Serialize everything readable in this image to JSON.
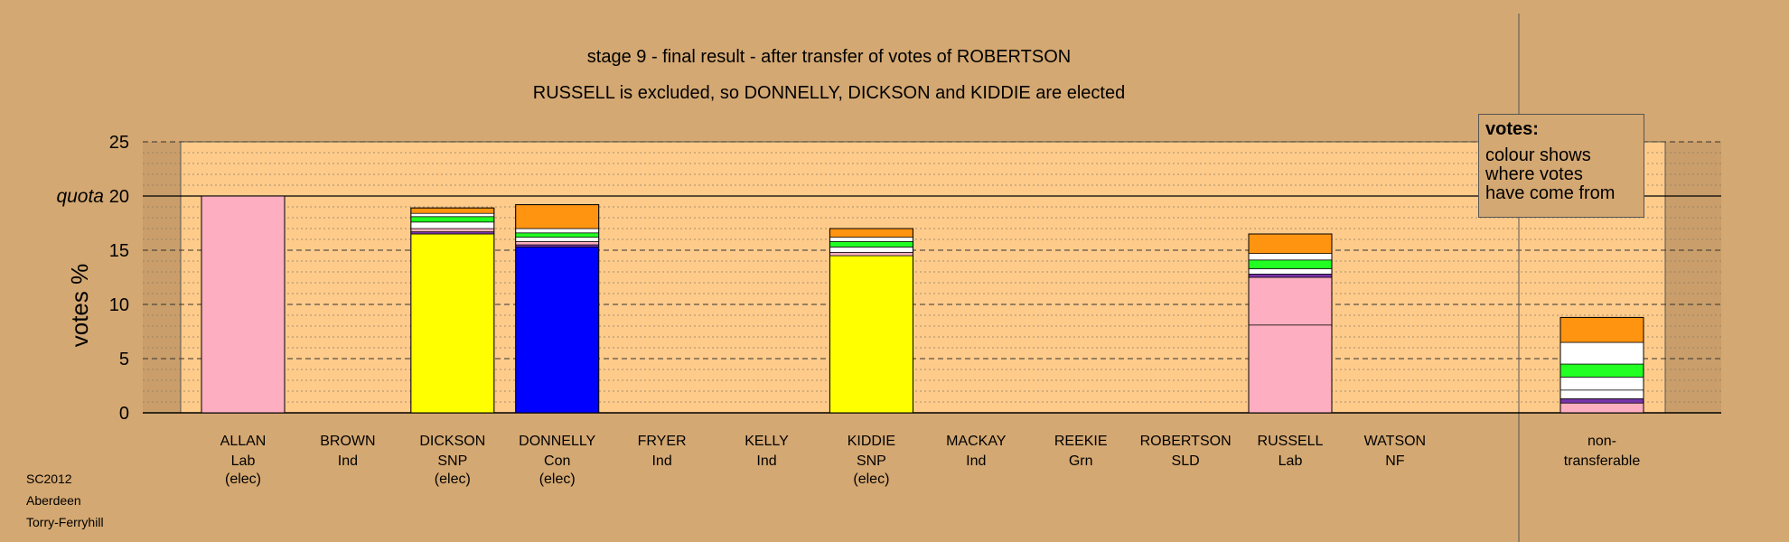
{
  "title_line1": "stage 9 - final result - after transfer of votes of ROBERTSON",
  "title_line2": "RUSSELL is excluded, so DONNELLY, DICKSON and KIDDIE are elected",
  "legend": {
    "heading": "votes:",
    "lines": [
      "colour shows",
      "where votes",
      "have come from"
    ]
  },
  "footer": [
    "SC2012",
    "Aberdeen",
    "Torry-Ferryhill"
  ],
  "chart_data": {
    "type": "bar",
    "stacked": true,
    "ylabel": "votes %",
    "ylim": [
      0,
      25
    ],
    "yticks": [
      0,
      5,
      10,
      15,
      20,
      25
    ],
    "quota": {
      "label": "quota",
      "value": 20
    },
    "colors": {
      "background": "#d4a872",
      "plot": "#fecb8b",
      "Lab": "#fdaec0",
      "SNP": "#ffff00",
      "Con": "#0000ff",
      "Grn": "#22ff22",
      "Ind": "#ffffff",
      "NF": "#7733aa",
      "SLD": "#ff9411"
    },
    "candidates": [
      {
        "name": "ALLAN",
        "party": "Lab",
        "status": "(elec)",
        "segments": [
          {
            "from": "Lab",
            "value": 20.0
          }
        ]
      },
      {
        "name": "BROWN",
        "party": "Ind",
        "status": "",
        "segments": []
      },
      {
        "name": "DICKSON",
        "party": "SNP",
        "status": "(elec)",
        "segments": [
          {
            "from": "SNP",
            "value": 16.5
          },
          {
            "from": "NF",
            "value": 0.2
          },
          {
            "from": "Lab",
            "value": 0.3
          },
          {
            "from": "Ind",
            "value": 0.6
          },
          {
            "from": "Grn",
            "value": 0.5
          },
          {
            "from": "Ind",
            "value": 0.3
          },
          {
            "from": "SLD",
            "value": 0.5
          }
        ]
      },
      {
        "name": "DONNELLY",
        "party": "Con",
        "status": "(elec)",
        "segments": [
          {
            "from": "Con",
            "value": 15.3
          },
          {
            "from": "NF",
            "value": 0.2
          },
          {
            "from": "Lab",
            "value": 0.3
          },
          {
            "from": "Ind",
            "value": 0.4
          },
          {
            "from": "Grn",
            "value": 0.4
          },
          {
            "from": "Ind",
            "value": 0.4
          },
          {
            "from": "SLD",
            "value": 2.2
          }
        ]
      },
      {
        "name": "FRYER",
        "party": "Ind",
        "status": "",
        "segments": []
      },
      {
        "name": "KELLY",
        "party": "Ind",
        "status": "",
        "segments": []
      },
      {
        "name": "KIDDIE",
        "party": "SNP",
        "status": "(elec)",
        "segments": [
          {
            "from": "SNP",
            "value": 14.5
          },
          {
            "from": "Lab",
            "value": 0.3
          },
          {
            "from": "Ind",
            "value": 0.5
          },
          {
            "from": "Grn",
            "value": 0.5
          },
          {
            "from": "Ind",
            "value": 0.4
          },
          {
            "from": "SLD",
            "value": 0.8
          }
        ]
      },
      {
        "name": "MACKAY",
        "party": "Ind",
        "status": "",
        "segments": []
      },
      {
        "name": "REEKIE",
        "party": "Grn",
        "status": "",
        "segments": []
      },
      {
        "name": "ROBERTSON",
        "party": "SLD",
        "status": "",
        "segments": []
      },
      {
        "name": "RUSSELL",
        "party": "Lab",
        "status": "",
        "segments": [
          {
            "from": "Lab",
            "value": 8.1
          },
          {
            "from": "Lab",
            "value": 4.4
          },
          {
            "from": "NF",
            "value": 0.3
          },
          {
            "from": "Ind",
            "value": 0.5
          },
          {
            "from": "Grn",
            "value": 0.8
          },
          {
            "from": "Ind",
            "value": 0.6
          },
          {
            "from": "SLD",
            "value": 1.8
          }
        ]
      },
      {
        "name": "WATSON",
        "party": "NF",
        "status": "",
        "segments": []
      }
    ],
    "nontransferable": {
      "label1": "non-",
      "label2": "transferable",
      "segments": [
        {
          "from": "Lab",
          "value": 0.9
        },
        {
          "from": "NF",
          "value": 0.4
        },
        {
          "from": "Ind",
          "value": 0.8
        },
        {
          "from": "Ind",
          "value": 1.2
        },
        {
          "from": "Grn",
          "value": 1.2
        },
        {
          "from": "Ind",
          "value": 2.0
        },
        {
          "from": "SLD",
          "value": 2.3
        }
      ]
    }
  }
}
